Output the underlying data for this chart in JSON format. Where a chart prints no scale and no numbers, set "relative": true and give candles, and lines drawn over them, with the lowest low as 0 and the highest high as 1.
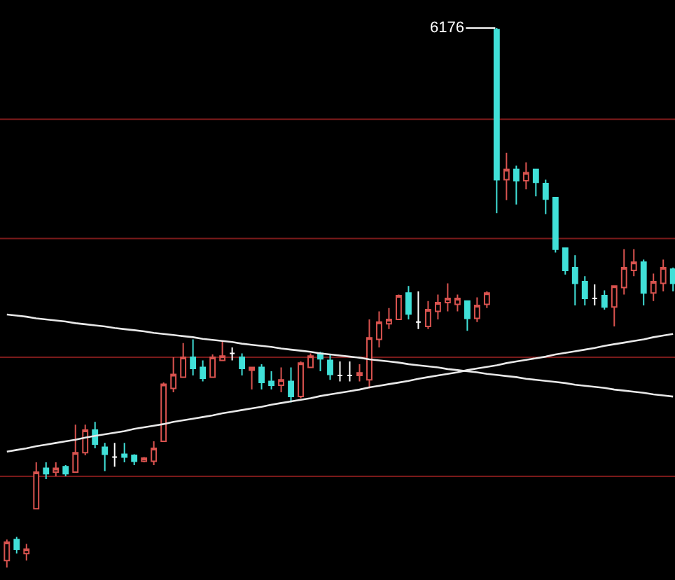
{
  "chart_data": {
    "type": "candlestick",
    "relative": true,
    "categories": [
      null,
      null,
      null,
      null,
      null,
      null,
      null,
      null,
      null,
      null,
      null,
      null,
      null,
      null,
      null,
      null,
      null,
      null,
      null,
      null,
      null,
      null,
      null,
      null,
      null,
      null,
      null,
      null,
      null,
      null,
      null,
      null,
      null,
      null,
      null,
      null,
      null,
      null,
      null,
      null,
      null,
      null,
      null,
      null,
      null,
      null,
      null,
      null,
      null,
      null,
      null,
      null,
      null,
      null,
      null,
      null,
      null,
      null,
      null,
      null,
      null,
      null,
      null,
      null,
      null,
      null,
      null,
      null,
      null
    ],
    "colors": [
      "#d9534f",
      "#40e0d8",
      "#d9534f",
      "#d9534f",
      "#40e0d8",
      "#d9534f",
      "#40e0d8",
      "#d9534f",
      "#d9534f",
      "#40e0d8",
      "#40e0d8",
      "#ffffff",
      "#40e0d8",
      "#40e0d8",
      "#d9534f",
      "#d9534f",
      "#d9534f",
      "#d9534f",
      "#d9534f",
      "#40e0d8",
      "#40e0d8",
      "#d9534f",
      "#d9534f",
      "#ffffff",
      "#40e0d8",
      "#d9534f",
      "#40e0d8",
      "#40e0d8",
      "#d9534f",
      "#40e0d8",
      "#d9534f",
      "#d9534f",
      "#40e0d8",
      "#40e0d8",
      "#ffffff",
      "#ffffff",
      "#d9534f",
      "#d9534f",
      "#d9534f",
      "#d9534f",
      "#d9534f",
      "#40e0d8",
      "#ffffff",
      "#d9534f",
      "#d9534f",
      "#d9534f",
      "#d9534f",
      "#40e0d8",
      "#d9534f",
      "#d9534f",
      "#40e0d8",
      "#d9534f",
      "#40e0d8",
      "#d9534f",
      "#40e0d8",
      "#40e0d8",
      "#40e0d8",
      "#40e0d8",
      "#40e0d8",
      "#40e0d8",
      "#ffffff",
      "#40e0d8",
      "#d9534f",
      "#d9534f",
      "#d9534f",
      "#40e0d8",
      "#d9534f",
      "#d9534f",
      "#40e0d8"
    ],
    "ohlc": [
      [
        0.013,
        0.052,
        0,
        0.047
      ],
      [
        0.052,
        0.057,
        0.026,
        0.034
      ],
      [
        0.026,
        0.044,
        0.013,
        0.034
      ],
      [
        0.109,
        0.195,
        0.109,
        0.177
      ],
      [
        0.184,
        0.195,
        0.164,
        0.174
      ],
      [
        0.177,
        0.195,
        0.169,
        0.184
      ],
      [
        0.187,
        0.19,
        0.169,
        0.174
      ],
      [
        0.177,
        0.265,
        0.177,
        0.213
      ],
      [
        0.213,
        0.265,
        0.208,
        0.255
      ],
      [
        0.255,
        0.27,
        0.221,
        0.229
      ],
      [
        0.223,
        0.231,
        0.179,
        0.21
      ],
      [
        0.205,
        0.231,
        0.187,
        0.205
      ],
      [
        0.21,
        0.231,
        0.195,
        0.205
      ],
      [
        0.208,
        0.21,
        0.19,
        0.197
      ],
      [
        0.197,
        0.205,
        0.195,
        0.203
      ],
      [
        0.197,
        0.234,
        0.19,
        0.221
      ],
      [
        0.234,
        0.343,
        0.234,
        0.34
      ],
      [
        0.332,
        0.39,
        0.325,
        0.358
      ],
      [
        0.353,
        0.416,
        0.353,
        0.39
      ],
      [
        0.39,
        0.423,
        0.356,
        0.369
      ],
      [
        0.371,
        0.384,
        0.345,
        0.351
      ],
      [
        0.353,
        0.395,
        0.353,
        0.39
      ],
      [
        0.384,
        0.421,
        0.384,
        0.392
      ],
      [
        0.397,
        0.408,
        0.384,
        0.397
      ],
      [
        0.39,
        0.397,
        0.356,
        0.369
      ],
      [
        0.366,
        0.371,
        0.33,
        0.371
      ],
      [
        0.371,
        0.377,
        0.33,
        0.343
      ],
      [
        0.345,
        0.364,
        0.33,
        0.338
      ],
      [
        0.338,
        0.371,
        0.325,
        0.348
      ],
      [
        0.345,
        0.371,
        0.306,
        0.317
      ],
      [
        0.317,
        0.382,
        0.314,
        0.379
      ],
      [
        0.371,
        0.397,
        0.371,
        0.392
      ],
      [
        0.397,
        0.4,
        0.364,
        0.387
      ],
      [
        0.384,
        0.395,
        0.348,
        0.358
      ],
      [
        0.356,
        0.382,
        0.345,
        0.356
      ],
      [
        0.356,
        0.382,
        0.345,
        0.356
      ],
      [
        0.356,
        0.377,
        0.345,
        0.361
      ],
      [
        0.348,
        0.46,
        0.332,
        0.426
      ],
      [
        0.423,
        0.475,
        0.408,
        0.455
      ],
      [
        0.452,
        0.481,
        0.442,
        0.46
      ],
      [
        0.46,
        0.506,
        0.46,
        0.504
      ],
      [
        0.509,
        0.522,
        0.46,
        0.47
      ],
      [
        0.455,
        0.512,
        0.442,
        0.455
      ],
      [
        0.447,
        0.494,
        0.442,
        0.478
      ],
      [
        0.475,
        0.506,
        0.46,
        0.491
      ],
      [
        0.491,
        0.527,
        0.475,
        0.499
      ],
      [
        0.488,
        0.506,
        0.475,
        0.499
      ],
      [
        0.494,
        0.494,
        0.439,
        0.462
      ],
      [
        0.462,
        0.501,
        0.455,
        0.486
      ],
      [
        0.488,
        0.512,
        0.481,
        0.509
      ],
      [
        0.997,
        1,
        0.657,
        0.719
      ],
      [
        0.719,
        0.769,
        0.681,
        0.738
      ],
      [
        0.738,
        0.745,
        0.673,
        0.717
      ],
      [
        0.717,
        0.751,
        0.701,
        0.732
      ],
      [
        0.738,
        0.738,
        0.688,
        0.714
      ],
      [
        0.712,
        0.719,
        0.655,
        0.683
      ],
      [
        0.686,
        0.686,
        0.584,
        0.59
      ],
      [
        0.592,
        0.592,
        0.543,
        0.551
      ],
      [
        0.556,
        0.579,
        0.486,
        0.527
      ],
      [
        0.53,
        0.54,
        0.486,
        0.499
      ],
      [
        0.499,
        0.525,
        0.486,
        0.499
      ],
      [
        0.504,
        0.514,
        0.478,
        0.483
      ],
      [
        0.483,
        0.522,
        0.447,
        0.522
      ],
      [
        0.519,
        0.59,
        0.506,
        0.556
      ],
      [
        0.551,
        0.59,
        0.54,
        0.566
      ],
      [
        0.566,
        0.571,
        0.486,
        0.509
      ],
      [
        0.509,
        0.545,
        0.494,
        0.53
      ],
      [
        0.527,
        0.571,
        0.512,
        0.556
      ],
      [
        0.553,
        0.556,
        0.512,
        0.527
      ]
    ],
    "series": [
      {
        "type": "line",
        "color": "#e8e8e8",
        "values": [
          0.469,
          0.467,
          0.465,
          0.462,
          0.46,
          0.458,
          0.456,
          0.453,
          0.451,
          0.449,
          0.447,
          0.444,
          0.442,
          0.44,
          0.438,
          0.435,
          0.433,
          0.431,
          0.429,
          0.427,
          0.424,
          0.422,
          0.42,
          0.418,
          0.415,
          0.413,
          0.411,
          0.409,
          0.406,
          0.404,
          0.402,
          0.4,
          0.397,
          0.395,
          0.393,
          0.391,
          0.389,
          0.386,
          0.384,
          0.382,
          0.38,
          0.377,
          0.375,
          0.373,
          0.371,
          0.368,
          0.366,
          0.364,
          0.362,
          0.359,
          0.357,
          0.355,
          0.353,
          0.35,
          0.348,
          0.346,
          0.344,
          0.342,
          0.339,
          0.337,
          0.335,
          0.333,
          0.33,
          0.328,
          0.326,
          0.324,
          0.321,
          0.319,
          0.317
        ]
      },
      {
        "type": "line",
        "color": "#e8e8e8",
        "values": [
          0.215,
          0.218,
          0.221,
          0.225,
          0.228,
          0.231,
          0.234,
          0.237,
          0.241,
          0.244,
          0.247,
          0.25,
          0.253,
          0.257,
          0.26,
          0.263,
          0.266,
          0.27,
          0.273,
          0.276,
          0.279,
          0.282,
          0.286,
          0.289,
          0.292,
          0.295,
          0.298,
          0.302,
          0.305,
          0.308,
          0.311,
          0.314,
          0.318,
          0.321,
          0.324,
          0.327,
          0.33,
          0.334,
          0.337,
          0.34,
          0.343,
          0.346,
          0.35,
          0.353,
          0.356,
          0.359,
          0.362,
          0.366,
          0.369,
          0.372,
          0.375,
          0.379,
          0.382,
          0.385,
          0.388,
          0.391,
          0.395,
          0.398,
          0.401,
          0.404,
          0.407,
          0.411,
          0.414,
          0.417,
          0.42,
          0.423,
          0.427,
          0.43,
          0.433
        ]
      }
    ],
    "ref_lines": [
      {
        "axis": "y",
        "value": 0.831,
        "color": "#7a1a1a"
      },
      {
        "axis": "y",
        "value": 0.61,
        "color": "#7a1a1a"
      },
      {
        "axis": "y",
        "value": 0.39,
        "color": "#7a1a1a"
      },
      {
        "axis": "y",
        "value": 0.169,
        "color": "#7a1a1a"
      }
    ],
    "annotations": [
      "6176"
    ]
  }
}
